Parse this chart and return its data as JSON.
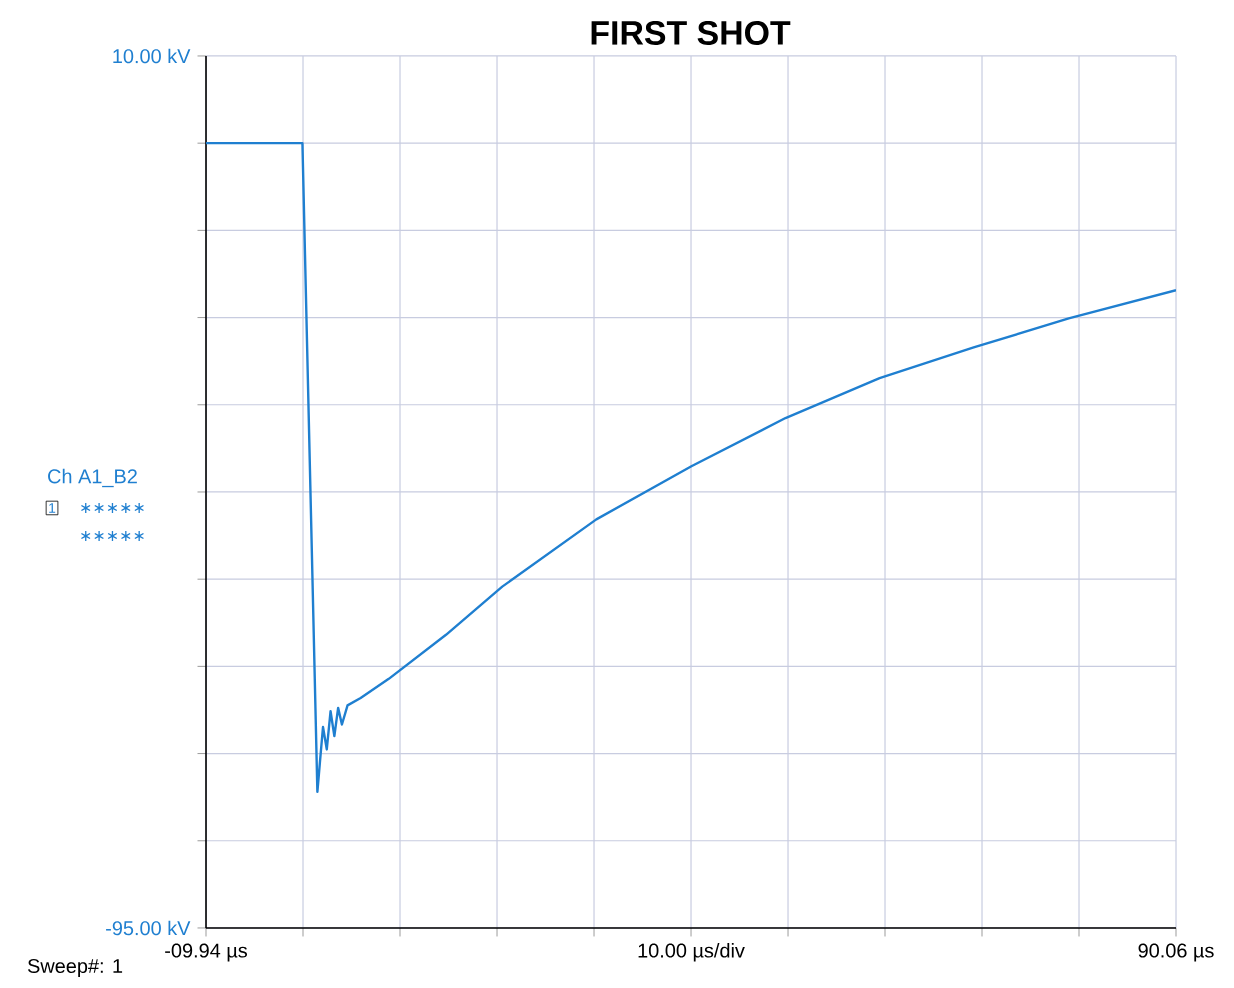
{
  "chart_data": {
    "type": "line",
    "title": "FIRST SHOT",
    "xlabel": "10.00 µs/div",
    "annotations": [
      "Ch A1_B2",
      "1",
      "∗∗∗∗∗",
      "∗∗∗∗∗",
      "Sweep#: 1"
    ],
    "series": [
      {
        "color": "#1f7fd0",
        "x": [
          -9.94,
          0.0,
          1.54,
          2.12,
          2.51,
          2.9,
          3.29,
          3.68,
          4.07,
          4.65,
          6.0,
          8.9,
          14.8,
          20.6,
          30.3,
          40.1,
          49.8,
          59.5,
          69.2,
          79.0,
          90.06
        ],
        "values": [
          -0.5,
          -0.5,
          -78.6,
          -70.8,
          -73.5,
          -68.9,
          -71.9,
          -68.5,
          -70.5,
          -68.2,
          -67.3,
          -65.0,
          -59.7,
          -53.9,
          -45.8,
          -39.4,
          -33.6,
          -28.8,
          -25.1,
          -21.6,
          -18.2
        ]
      }
    ],
    "xlim": [
      -9.94,
      90.06
    ],
    "ylim": [
      -95,
      10
    ],
    "xticks": [
      {
        "value": -9.94,
        "label": "-09.94 µs"
      },
      {
        "value": 0.06,
        "label": null
      },
      {
        "value": 10.06,
        "label": null
      },
      {
        "value": 20.06,
        "label": null
      },
      {
        "value": 30.06,
        "label": null
      },
      {
        "value": 40.06,
        "label": null
      },
      {
        "value": 50.06,
        "label": null
      },
      {
        "value": 60.06,
        "label": null
      },
      {
        "value": 70.06,
        "label": null
      },
      {
        "value": 80.06,
        "label": null
      },
      {
        "value": 90.06,
        "label": "90.06 µs"
      }
    ],
    "yticks": [
      {
        "value": -95,
        "label": "-95.00 kV"
      },
      {
        "value": -84.5,
        "label": null
      },
      {
        "value": -74,
        "label": null
      },
      {
        "value": -63.5,
        "label": null
      },
      {
        "value": -53,
        "label": null
      },
      {
        "value": -42.5,
        "label": null
      },
      {
        "value": -32,
        "label": null
      },
      {
        "value": -21.5,
        "label": null
      },
      {
        "value": -11,
        "label": null
      },
      {
        "value": -0.5,
        "label": null
      },
      {
        "value": 10,
        "label": "10.00 kV"
      }
    ],
    "grid": true
  }
}
